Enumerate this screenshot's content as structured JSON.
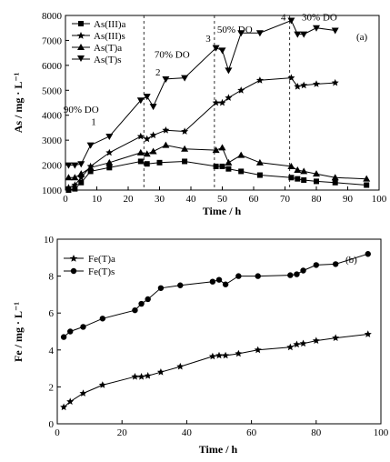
{
  "chart_data": [
    {
      "id": "a",
      "type": "line",
      "panel_label": "(a)",
      "xlabel": "Time / h",
      "ylabel": "As / mg · L⁻¹",
      "xlim": [
        0,
        100
      ],
      "ylim": [
        1000,
        8000
      ],
      "xticks": [
        "0",
        "10",
        "20",
        "30",
        "40",
        "50",
        "60",
        "70",
        "80",
        "90",
        "100"
      ],
      "yticks": [
        "1000",
        "2000",
        "3000",
        "4000",
        "5000",
        "6000",
        "7000",
        "8000"
      ],
      "legend_position": "top-left",
      "grid": false,
      "series": [
        {
          "name": "As(III)a",
          "marker": "square",
          "x": [
            1,
            3,
            5,
            8,
            14,
            24,
            26,
            30,
            38,
            48,
            50,
            52,
            56,
            62,
            72,
            74,
            76,
            80,
            86,
            96
          ],
          "y": [
            1000,
            1050,
            1300,
            1750,
            1900,
            2150,
            2050,
            2100,
            2150,
            1950,
            1950,
            1850,
            1750,
            1600,
            1500,
            1450,
            1400,
            1350,
            1300,
            1200
          ]
        },
        {
          "name": "As(III)s",
          "marker": "star",
          "x": [
            1,
            3,
            5,
            8,
            14,
            24,
            26,
            28,
            32,
            38,
            48,
            50,
            52,
            56,
            62,
            72,
            74,
            76,
            80,
            86
          ],
          "y": [
            1100,
            1200,
            1500,
            1950,
            2500,
            3150,
            3050,
            3200,
            3400,
            3350,
            4500,
            4500,
            4700,
            5000,
            5400,
            5500,
            5150,
            5200,
            5250,
            5300
          ]
        },
        {
          "name": "As(T)a",
          "marker": "triangle-up",
          "x": [
            1,
            3,
            5,
            8,
            14,
            24,
            26,
            28,
            32,
            38,
            48,
            50,
            52,
            56,
            62,
            72,
            74,
            76,
            80,
            86,
            96
          ],
          "y": [
            1500,
            1500,
            1650,
            1900,
            2100,
            2500,
            2450,
            2550,
            2800,
            2650,
            2600,
            2700,
            2100,
            2400,
            2100,
            1950,
            1800,
            1750,
            1650,
            1500,
            1450
          ]
        },
        {
          "name": "As(T)s",
          "marker": "triangle-down",
          "x": [
            1,
            3,
            5,
            8,
            14,
            24,
            26,
            28,
            32,
            38,
            48,
            50,
            52,
            56,
            62,
            72,
            74,
            76,
            80,
            86
          ],
          "y": [
            2000,
            2000,
            2050,
            2800,
            3150,
            4600,
            4750,
            4350,
            5450,
            5500,
            6700,
            6600,
            5800,
            7300,
            7300,
            7800,
            7250,
            7250,
            7500,
            7400
          ]
        }
      ],
      "annotations": [
        {
          "text": "90% DO",
          "x": 5,
          "y": 4100
        },
        {
          "text": "1",
          "x": 9,
          "y": 3600
        },
        {
          "text": "70% DO",
          "x": 34,
          "y": 6300
        },
        {
          "text": "2",
          "x": 29.5,
          "y": 5600
        },
        {
          "text": "50% DO",
          "x": 54,
          "y": 7300
        },
        {
          "text": "3",
          "x": 45.5,
          "y": 6950
        },
        {
          "text": "4",
          "x": 69.5,
          "y": 7800
        },
        {
          "text": "30% DO",
          "x": 81,
          "y": 7800
        }
      ],
      "vlines": [
        25,
        47.5,
        71.5
      ]
    },
    {
      "id": "b",
      "type": "line",
      "panel_label": "(b)",
      "xlabel": "Time / h",
      "ylabel": "Fe / mg · L⁻¹",
      "xlim": [
        0,
        100
      ],
      "ylim": [
        0,
        10
      ],
      "xticks": [
        "0",
        "20",
        "40",
        "60",
        "80",
        "100"
      ],
      "yticks": [
        "0",
        "2",
        "4",
        "6",
        "8",
        "10"
      ],
      "legend_position": "top-left",
      "grid": false,
      "series": [
        {
          "name": "Fe(T)a",
          "marker": "star",
          "x": [
            2,
            4,
            8,
            14,
            24,
            26,
            28,
            32,
            38,
            48,
            50,
            52,
            56,
            62,
            72,
            74,
            76,
            80,
            86,
            96
          ],
          "y": [
            0.9,
            1.2,
            1.65,
            2.1,
            2.55,
            2.55,
            2.6,
            2.8,
            3.1,
            3.65,
            3.7,
            3.7,
            3.8,
            4.0,
            4.15,
            4.3,
            4.35,
            4.5,
            4.65,
            4.85
          ]
        },
        {
          "name": "Fe(T)s",
          "marker": "circle",
          "x": [
            2,
            4,
            8,
            14,
            24,
            26,
            28,
            32,
            38,
            48,
            50,
            52,
            56,
            62,
            72,
            74,
            76,
            80,
            86,
            96
          ],
          "y": [
            4.7,
            5.0,
            5.25,
            5.7,
            6.15,
            6.5,
            6.75,
            7.35,
            7.5,
            7.7,
            7.8,
            7.55,
            8.0,
            8.0,
            8.05,
            8.1,
            8.3,
            8.6,
            8.65,
            9.2
          ]
        }
      ]
    }
  ]
}
